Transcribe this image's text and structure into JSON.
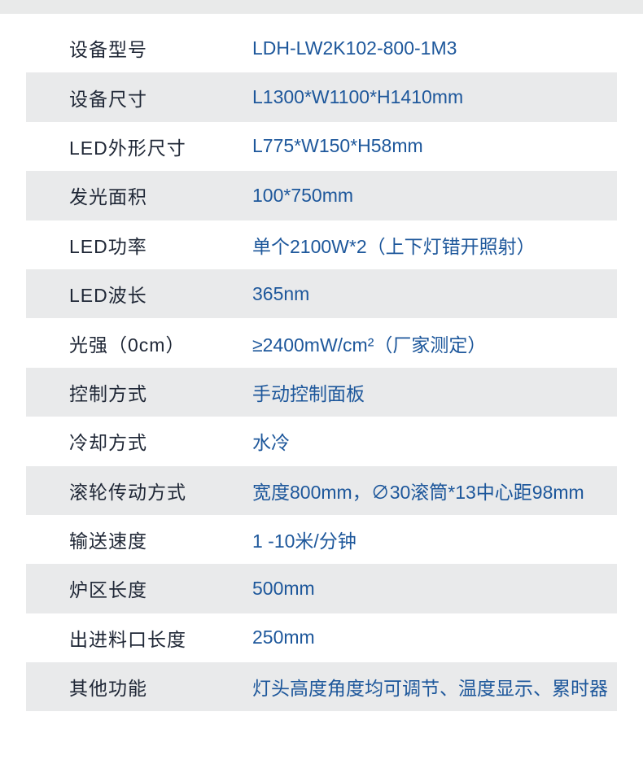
{
  "colors": {
    "page_background": "#ffffff",
    "top_band": "#e9eaea",
    "row_stripe": "#e9eaeb",
    "label_text": "#1f2736",
    "value_text": "#1d579b"
  },
  "spec_table": {
    "rows": [
      {
        "label": "设备型号",
        "value": "LDH-LW2K102-800-1M3"
      },
      {
        "label": "设备尺寸",
        "value": "L1300*W1100*H1410mm"
      },
      {
        "label": "LED外形尺寸",
        "value": "L775*W150*H58mm"
      },
      {
        "label": "发光面积",
        "value": "100*750mm"
      },
      {
        "label": "LED功率",
        "value": "单个2100W*2（上下灯错开照射）"
      },
      {
        "label": "LED波长",
        "value": "365nm"
      },
      {
        "label": "光强（0cm）",
        "value": "≥2400mW/cm²（厂家测定）"
      },
      {
        "label": "控制方式",
        "value": "手动控制面板"
      },
      {
        "label": "冷却方式",
        "value": "水冷"
      },
      {
        "label": "滚轮传动方式",
        "value": "宽度800mm，∅30滚筒*13中心距98mm"
      },
      {
        "label": "输送速度",
        "value": "1 -10米/分钟"
      },
      {
        "label": "炉区长度",
        "value": "500mm"
      },
      {
        "label": "出进料口长度",
        "value": "250mm"
      },
      {
        "label": "其他功能",
        "value": "灯头高度角度均可调节、温度显示、累时器"
      }
    ]
  }
}
